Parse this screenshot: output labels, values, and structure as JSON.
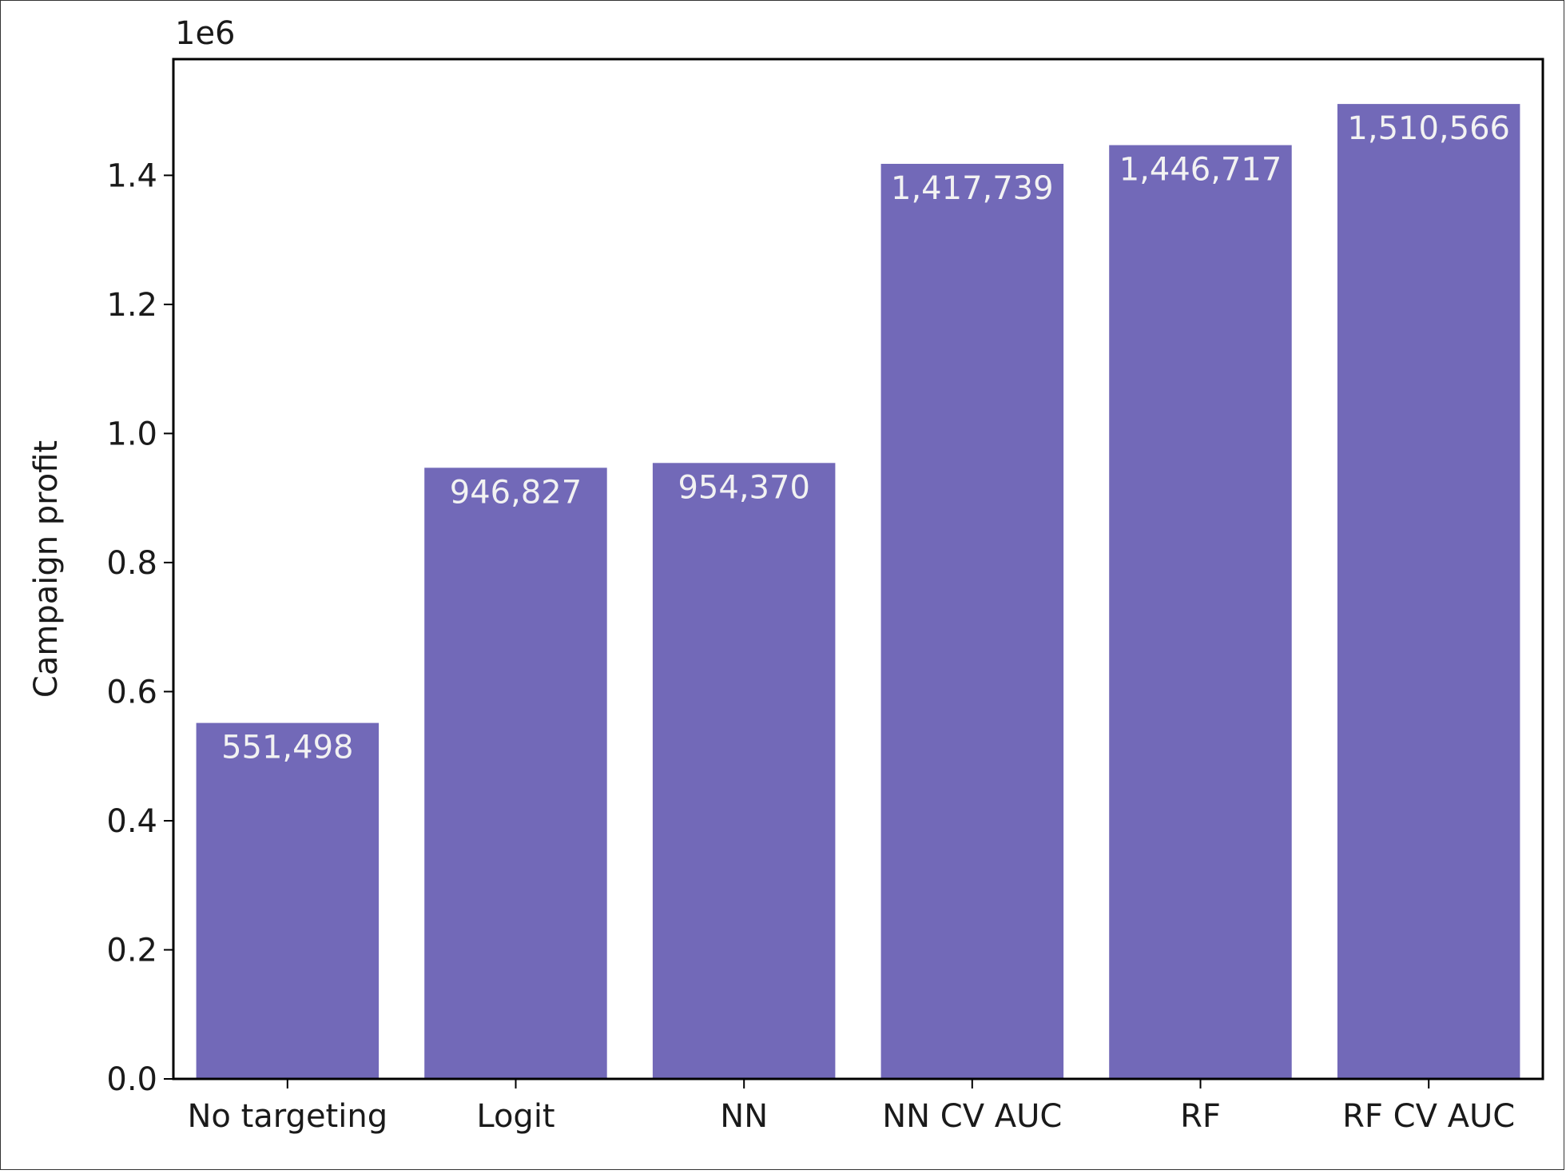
{
  "chart_data": {
    "type": "bar",
    "categories": [
      "No targeting",
      "Logit",
      "NN",
      "NN CV AUC",
      "RF",
      "RF CV AUC"
    ],
    "values": [
      551498,
      946827,
      954370,
      1417739,
      1446717,
      1510566
    ],
    "value_labels": [
      "551,498",
      "946,827",
      "954,370",
      "1,417,739",
      "1,446,717",
      "1,510,566"
    ],
    "title": "",
    "xlabel": "",
    "ylabel": "Campaign profit",
    "offset_label": "1e6",
    "y_ticks": [
      0.0,
      0.2,
      0.4,
      0.6,
      0.8,
      1.0,
      1.2,
      1.4
    ],
    "y_tick_labels": [
      "0.0",
      "0.2",
      "0.4",
      "0.6",
      "0.8",
      "1.0",
      "1.2",
      "1.4"
    ],
    "ylim": [
      0,
      1580000
    ],
    "grid": false,
    "legend": "none",
    "bar_color": "#7269b8",
    "bar_label_color": "#f2f2f2"
  }
}
